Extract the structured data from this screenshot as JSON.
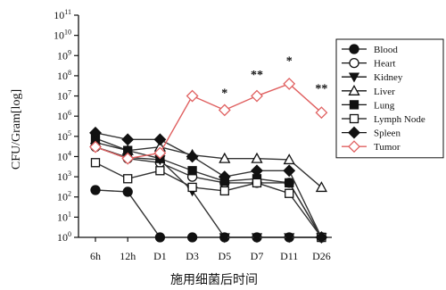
{
  "chart_data": {
    "type": "line",
    "title": "",
    "xlabel": "施用细菌后时间",
    "ylabel": "CFU/Gram[log]",
    "y_scale": "log",
    "ylim": [
      1,
      100000000000
    ],
    "y_ticks": [
      {
        "value": 1,
        "base": "10",
        "exp": "0"
      },
      {
        "value": 10,
        "base": "10",
        "exp": "1"
      },
      {
        "value": 100,
        "base": "10",
        "exp": "2"
      },
      {
        "value": 1000,
        "base": "10",
        "exp": "3"
      },
      {
        "value": 10000,
        "base": "10",
        "exp": "4"
      },
      {
        "value": 100000,
        "base": "10",
        "exp": "5"
      },
      {
        "value": 1000000,
        "base": "10",
        "exp": "6"
      },
      {
        "value": 10000000,
        "base": "10",
        "exp": "7"
      },
      {
        "value": 100000000,
        "base": "10",
        "exp": "8"
      },
      {
        "value": 1000000000,
        "base": "10",
        "exp": "9"
      },
      {
        "value": 10000000000,
        "base": "10",
        "exp": "10"
      },
      {
        "value": 100000000000,
        "base": "10",
        "exp": "11"
      }
    ],
    "categories": [
      "6h",
      "12h",
      "D1",
      "D3",
      "D5",
      "D7",
      "D11",
      "D26"
    ],
    "legend_position": "right",
    "grid": false,
    "series": [
      {
        "name": "Blood",
        "marker": "circle-filled",
        "color": "#111111",
        "values": [
          220,
          180,
          1,
          1,
          1,
          1,
          1,
          1
        ]
      },
      {
        "name": "Heart",
        "marker": "circle-open",
        "color": "#111111",
        "values": [
          30000,
          8000,
          5000,
          1000,
          500,
          500,
          500,
          1
        ]
      },
      {
        "name": "Kidney",
        "marker": "triangle-down-filled",
        "color": "#111111",
        "values": [
          30000,
          9000,
          7000,
          200,
          1,
          1,
          1,
          1
        ]
      },
      {
        "name": "Liver",
        "marker": "triangle-up-open",
        "color": "#111111",
        "values": [
          50000,
          20000,
          30000,
          12000,
          8000,
          8000,
          7000,
          300
        ]
      },
      {
        "name": "Lung",
        "marker": "square-filled",
        "color": "#111111",
        "values": [
          80000,
          20000,
          8000,
          2000,
          600,
          800,
          500,
          1
        ]
      },
      {
        "name": "Lymph Node",
        "marker": "square-open",
        "color": "#111111",
        "values": [
          5000,
          800,
          2000,
          300,
          200,
          500,
          150,
          1
        ]
      },
      {
        "name": "Spleen",
        "marker": "diamond-filled",
        "color": "#111111",
        "values": [
          150000,
          70000,
          70000,
          10000,
          1000,
          2000,
          2000,
          1
        ]
      },
      {
        "name": "Tumor",
        "marker": "diamond-open",
        "color": "#e06060",
        "values": [
          30000,
          8000,
          15000,
          10000000,
          2000000,
          10000000,
          40000000,
          1500000
        ]
      }
    ],
    "annotations": [
      {
        "category": "D5",
        "value": 15000000,
        "text": "*"
      },
      {
        "category": "D7",
        "value": 120000000,
        "text": "**"
      },
      {
        "category": "D11",
        "value": 600000000,
        "text": "*"
      },
      {
        "category": "D26",
        "value": 25000000,
        "text": "**"
      }
    ]
  }
}
